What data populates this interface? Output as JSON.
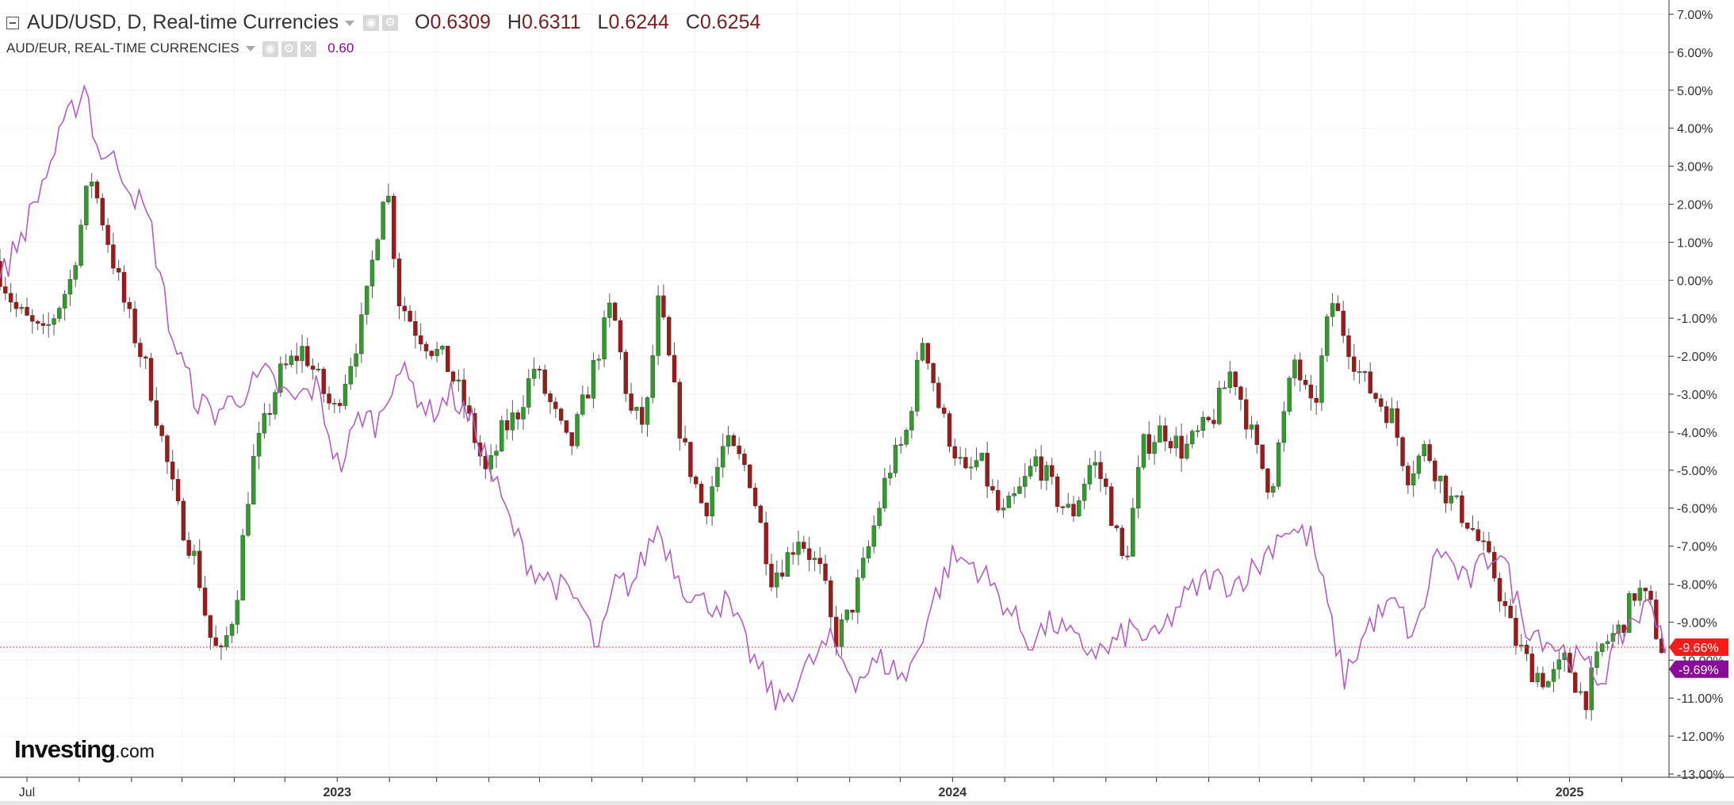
{
  "header": {
    "symbol_title": "AUD/USD, D, Real-time Currencies",
    "ohlc": [
      {
        "key": "O",
        "value": "0.6309"
      },
      {
        "key": "H",
        "value": "0.6311"
      },
      {
        "key": "L",
        "value": "0.6244"
      },
      {
        "key": "C",
        "value": "0.6254"
      }
    ],
    "compare_title": "AUD/EUR, REAL-TIME CURRENCIES",
    "compare_value": "0.60",
    "icons": [
      "collapse-icon",
      "dropdown-caret-icon",
      "visibility-icon",
      "settings-icon",
      "close-icon"
    ]
  },
  "logo": {
    "main": "Investing",
    "suffix": ".com"
  },
  "colors": {
    "up_candle": "#2e9d2a",
    "down_candle": "#a01818",
    "compare_line": "#b160c0",
    "current_line": "#ff4040",
    "usd_badge": "#ff1a1a",
    "eur_badge": "#8a0a9a"
  },
  "chart_data": {
    "type": "line",
    "y_unit": "% change",
    "ylim": [
      -13,
      7
    ],
    "y_ticks": [
      "7.00%",
      "6.00%",
      "5.00%",
      "4.00%",
      "3.00%",
      "2.00%",
      "1.00%",
      "0.00%",
      "-1.00%",
      "-2.00%",
      "-3.00%",
      "-4.00%",
      "-5.00%",
      "-6.00%",
      "-7.00%",
      "-8.00%",
      "-9.00%",
      "-10.00%",
      "-11.00%",
      "-12.00%",
      "-13.00%"
    ],
    "x_ticks": [
      {
        "label": "Jul",
        "date": "2022-07-01"
      },
      {
        "label": "2023",
        "date": "2023-01-01"
      },
      {
        "label": "2024",
        "date": "2024-01-01"
      },
      {
        "label": "2025",
        "date": "2025-01-01"
      }
    ],
    "minor_ticks": [
      "2022-08-01",
      "2022-09-01",
      "2022-10-01",
      "2022-11-01",
      "2022-12-01",
      "2023-02-01",
      "2023-03-01",
      "2023-04-01",
      "2023-05-01",
      "2023-06-01",
      "2023-07-01",
      "2023-08-01",
      "2023-09-01",
      "2023-10-01",
      "2023-11-01",
      "2023-12-01",
      "2024-02-01",
      "2024-03-01",
      "2024-04-01",
      "2024-05-01",
      "2024-06-01",
      "2024-07-01",
      "2024-08-01",
      "2024-09-01",
      "2024-10-01",
      "2024-11-01",
      "2024-12-01",
      "2025-02-01"
    ],
    "x_range": [
      "2022-06-15",
      "2025-03-01"
    ],
    "grid": true,
    "series": [
      {
        "name": "AUD/USD",
        "style": "candlestick",
        "end_label": "-9.66%",
        "x": [
          "2022-06-15",
          "2022-06-28",
          "2022-07-14",
          "2022-07-30",
          "2022-08-11",
          "2022-09-01",
          "2022-09-14",
          "2022-10-01",
          "2022-10-13",
          "2022-10-20",
          "2022-10-27",
          "2022-11-05",
          "2022-11-14",
          "2022-12-01",
          "2022-12-15",
          "2023-01-02",
          "2023-01-20",
          "2023-02-02",
          "2023-02-10",
          "2023-02-20",
          "2023-03-10",
          "2023-03-20",
          "2023-04-03",
          "2023-04-12",
          "2023-04-21",
          "2023-05-01",
          "2023-05-10",
          "2023-05-22",
          "2023-06-01",
          "2023-06-16",
          "2023-06-27",
          "2023-07-06",
          "2023-07-14",
          "2023-07-28",
          "2023-08-10",
          "2023-08-22",
          "2023-09-05",
          "2023-09-19",
          "2023-09-28",
          "2023-10-05",
          "2023-10-19",
          "2023-10-26",
          "2023-11-04",
          "2023-11-14",
          "2023-11-27",
          "2023-12-07",
          "2023-12-18",
          "2023-12-28",
          "2024-01-12",
          "2024-01-20",
          "2024-02-02",
          "2024-02-14",
          "2024-02-23",
          "2024-03-07",
          "2024-03-15",
          "2024-03-27",
          "2024-04-04",
          "2024-04-15",
          "2024-04-26",
          "2024-05-08",
          "2024-05-20",
          "2024-06-06",
          "2024-06-18",
          "2024-07-03",
          "2024-07-11",
          "2024-07-25",
          "2024-08-05",
          "2024-08-16",
          "2024-09-03",
          "2024-09-21",
          "2024-09-30",
          "2024-10-11",
          "2024-10-24",
          "2024-11-06",
          "2024-11-21",
          "2024-12-02",
          "2024-12-12",
          "2024-12-23",
          "2025-01-02",
          "2025-01-13",
          "2025-01-24",
          "2025-02-03",
          "2025-02-13",
          "2025-02-21",
          "2025-02-27"
        ],
        "values": [
          0.5,
          -0.8,
          -1.5,
          0.0,
          2.8,
          -0.8,
          -2.5,
          -6.0,
          -7.5,
          -9.3,
          -10.0,
          -8.5,
          -5.0,
          -2.5,
          -1.8,
          -3.5,
          -1.0,
          2.8,
          -0.5,
          -1.3,
          -2.2,
          -3.2,
          -5.2,
          -4.0,
          -3.5,
          -2.3,
          -3.2,
          -4.5,
          -3.0,
          -0.6,
          -3.5,
          -3.8,
          -0.5,
          -4.3,
          -6.1,
          -4.3,
          -5.0,
          -7.8,
          -7.3,
          -6.7,
          -7.8,
          -9.5,
          -8.8,
          -7.3,
          -5.0,
          -4.2,
          -1.4,
          -3.5,
          -5.2,
          -4.7,
          -6.3,
          -5.5,
          -4.7,
          -5.8,
          -6.2,
          -4.7,
          -5.5,
          -7.6,
          -4.4,
          -3.9,
          -4.5,
          -3.7,
          -2.3,
          -4.6,
          -5.5,
          -2.1,
          -3.6,
          -0.5,
          -2.6,
          -3.6,
          -5.1,
          -4.4,
          -5.7,
          -6.4,
          -7.8,
          -9.4,
          -10.2,
          -10.6,
          -10.0,
          -11.1,
          -9.6,
          -9.2,
          -8.1,
          -8.6,
          -9.66
        ]
      },
      {
        "name": "AUD/EUR",
        "style": "line",
        "end_label": "-9.69%",
        "x": [
          "2022-06-15",
          "2022-07-01",
          "2022-07-14",
          "2022-07-25",
          "2022-08-05",
          "2022-08-11",
          "2022-08-25",
          "2022-09-12",
          "2022-09-25",
          "2022-10-10",
          "2022-10-20",
          "2022-11-05",
          "2022-11-20",
          "2022-12-05",
          "2022-12-20",
          "2023-01-02",
          "2023-01-15",
          "2023-01-25",
          "2023-02-05",
          "2023-02-15",
          "2023-02-25",
          "2023-03-10",
          "2023-03-25",
          "2023-04-10",
          "2023-04-25",
          "2023-05-10",
          "2023-05-25",
          "2023-06-05",
          "2023-06-15",
          "2023-06-25",
          "2023-07-10",
          "2023-07-25",
          "2023-08-05",
          "2023-08-20",
          "2023-09-05",
          "2023-09-20",
          "2023-10-05",
          "2023-10-20",
          "2023-11-05",
          "2023-11-20",
          "2023-12-05",
          "2023-12-20",
          "2024-01-01",
          "2024-01-15",
          "2024-02-01",
          "2024-02-15",
          "2024-03-01",
          "2024-03-15",
          "2024-04-01",
          "2024-04-15",
          "2024-05-01",
          "2024-05-15",
          "2024-06-01",
          "2024-06-15",
          "2024-07-01",
          "2024-07-15",
          "2024-08-01",
          "2024-08-10",
          "2024-08-20",
          "2024-09-05",
          "2024-09-20",
          "2024-10-01",
          "2024-10-15",
          "2024-11-01",
          "2024-11-20",
          "2024-12-05",
          "2024-12-20",
          "2025-01-05",
          "2025-01-20",
          "2025-02-05",
          "2025-02-20",
          "2025-02-27"
        ],
        "values": [
          0.0,
          1.5,
          3.0,
          4.2,
          5.2,
          3.5,
          3.0,
          1.5,
          -1.5,
          -3.2,
          -3.5,
          -3.0,
          -2.5,
          -3.2,
          -2.8,
          -5.0,
          -3.5,
          -3.8,
          -2.3,
          -2.8,
          -3.5,
          -3.0,
          -4.0,
          -6.0,
          -7.5,
          -8.0,
          -8.5,
          -9.8,
          -8.0,
          -8.0,
          -6.5,
          -8.0,
          -8.5,
          -8.5,
          -10.0,
          -11.2,
          -10.3,
          -9.5,
          -10.5,
          -10.0,
          -10.5,
          -8.5,
          -7.3,
          -7.5,
          -8.5,
          -9.5,
          -9.0,
          -9.6,
          -9.8,
          -9.2,
          -9.5,
          -8.5,
          -7.8,
          -8.0,
          -7.5,
          -6.5,
          -6.8,
          -8.5,
          -10.5,
          -9.0,
          -8.5,
          -9.5,
          -7.0,
          -8.0,
          -7.0,
          -9.0,
          -9.5,
          -10.0,
          -10.5,
          -9.0,
          -8.5,
          -9.69
        ]
      }
    ]
  }
}
